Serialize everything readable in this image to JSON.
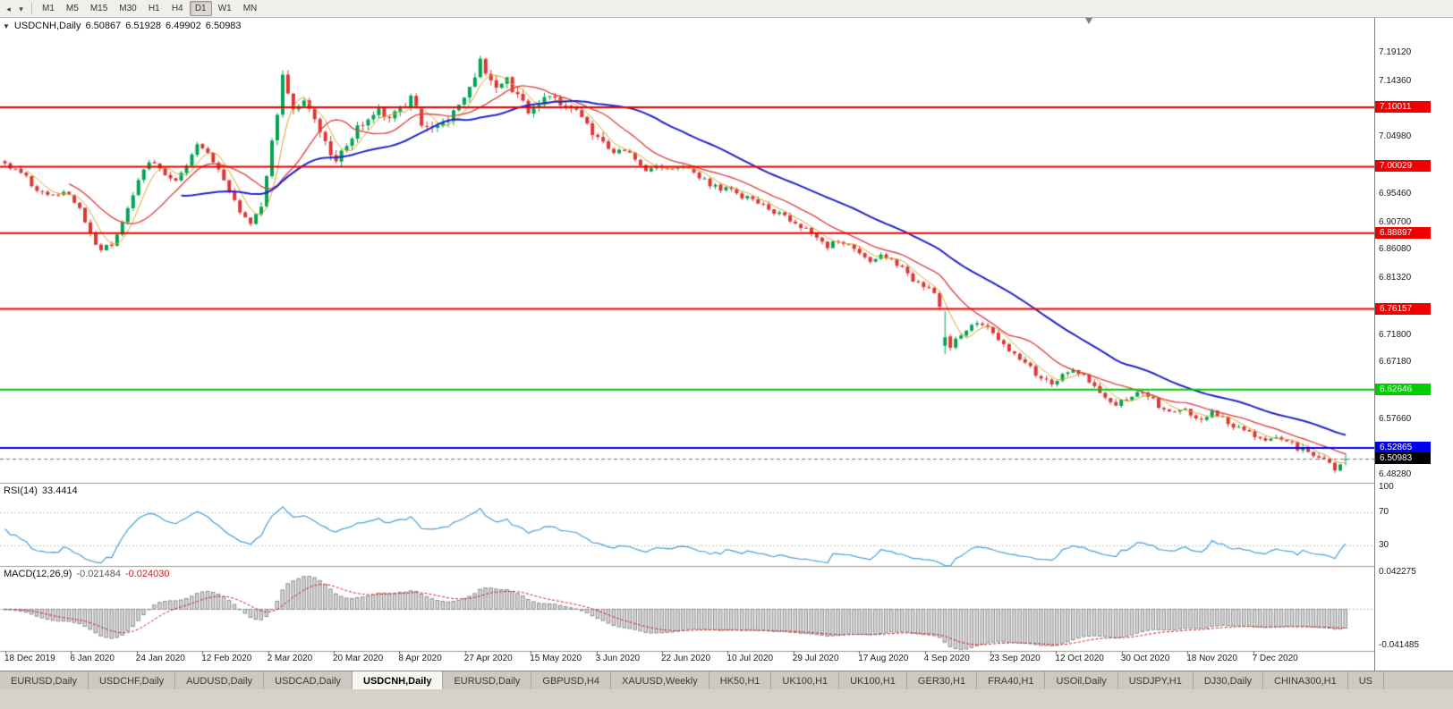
{
  "toolbar": {
    "timeframes": [
      "M1",
      "M5",
      "M15",
      "M30",
      "H1",
      "H4",
      "D1",
      "W1",
      "MN"
    ],
    "active_timeframe": "D1",
    "icons": {
      "back_arrow": "◂",
      "caret": "▾"
    }
  },
  "chart": {
    "collapse_arrow": "▼",
    "symbol_label": "USDCNH,Daily",
    "ohlc": {
      "open": "6.50867",
      "high": "6.51928",
      "low": "6.49902",
      "close": "6.50983"
    },
    "price_axis_labels": [
      "7.19120",
      "7.14360",
      "7.04980",
      "6.95460",
      "6.90700",
      "6.86080",
      "6.81320",
      "6.71800",
      "6.67180",
      "6.57660",
      "6.48280"
    ],
    "hlines": [
      {
        "value": "7.10011",
        "price": 7.10011,
        "color": "#ee0000"
      },
      {
        "value": "7.00029",
        "price": 7.00029,
        "color": "#ee0000"
      },
      {
        "value": "6.88897",
        "price": 6.88897,
        "color": "#ee0000"
      },
      {
        "value": "6.76157",
        "price": 6.76157,
        "color": "#ee0000"
      },
      {
        "value": "6.62646",
        "price": 6.62646,
        "color": "#00cc00"
      },
      {
        "value": "6.52865",
        "price": 6.52865,
        "color": "#0000ee"
      }
    ],
    "current_price": {
      "value": "6.50983",
      "price": 6.50983,
      "bg": "#000000"
    },
    "date_axis_labels": [
      "18 Dec 2019",
      "6 Jan 2020",
      "24 Jan 2020",
      "12 Feb 2020",
      "2 Mar 2020",
      "20 Mar 2020",
      "8 Apr 2020",
      "27 Apr 2020",
      "15 May 2020",
      "3 Jun 2020",
      "22 Jun 2020",
      "10 Jul 2020",
      "29 Jul 2020",
      "17 Aug 2020",
      "4 Sep 2020",
      "23 Sep 2020",
      "12 Oct 2020",
      "30 Oct 2020",
      "18 Nov 2020",
      "7 Dec 2020"
    ],
    "colors": {
      "up": "#00a651",
      "down": "#e03535",
      "ma_fast": "#d8a62a",
      "ma_mid": "#e04646",
      "ma_slow": "#2222cc",
      "rsi": "#46a0dc",
      "macd_hist_fill": "#d8d8d8",
      "macd_hist_stroke": "#8c8c8c",
      "macd_signal": "#d02020"
    }
  },
  "rsi": {
    "label": "RSI(14)",
    "value": "33.4414",
    "axis_labels": [
      "100",
      "70",
      "30"
    ],
    "levels": [
      70,
      30
    ]
  },
  "macd": {
    "label": "MACD(12,26,9)",
    "value_main": "-0.021484",
    "value_signal": "-0.024030",
    "axis_labels": [
      "0.042275",
      "-0.041485"
    ]
  },
  "tabs": {
    "items": [
      "EURUSD,Daily",
      "USDCHF,Daily",
      "AUDUSD,Daily",
      "USDCAD,Daily",
      "USDCNH,Daily",
      "EURUSD,Daily",
      "GBPUSD,H4",
      "XAUUSD,Weekly",
      "HK50,H1",
      "UK100,H1",
      "UK100,H1",
      "GER30,H1",
      "FRA40,H1",
      "USOil,Daily",
      "USDJPY,H1",
      "DJ30,Daily",
      "CHINA300,H1",
      "US"
    ],
    "active_index": 4
  },
  "chart_data": {
    "type": "candlestick",
    "symbol": "USDCNH",
    "timeframe": "Daily",
    "bars": 252,
    "y_range_displayed": [
      6.47,
      7.25
    ],
    "x_axis_dates": [
      "18 Dec 2019",
      "6 Jan 2020",
      "24 Jan 2020",
      "12 Feb 2020",
      "2 Mar 2020",
      "20 Mar 2020",
      "8 Apr 2020",
      "27 Apr 2020",
      "15 May 2020",
      "3 Jun 2020",
      "22 Jun 2020",
      "10 Jul 2020",
      "29 Jul 2020",
      "17 Aug 2020",
      "4 Sep 2020",
      "23 Sep 2020",
      "12 Oct 2020",
      "30 Oct 2020",
      "18 Nov 2020",
      "7 Dec 2020"
    ],
    "last_bar_ohlc": {
      "open": 6.50867,
      "high": 6.51928,
      "low": 6.49902,
      "close": 6.50983
    },
    "horizontal_levels": [
      7.10011,
      7.00029,
      6.88897,
      6.76157,
      6.62646,
      6.52865
    ],
    "close_anchors": [
      [
        0,
        7.003
      ],
      [
        3,
        6.99
      ],
      [
        6,
        6.963
      ],
      [
        9,
        6.949
      ],
      [
        12,
        6.958
      ],
      [
        14,
        6.928
      ],
      [
        16,
        6.888
      ],
      [
        18,
        6.858
      ],
      [
        20,
        6.872
      ],
      [
        22,
        6.905
      ],
      [
        24,
        6.955
      ],
      [
        26,
        7.0
      ],
      [
        28,
        7.008
      ],
      [
        30,
        6.988
      ],
      [
        32,
        6.98
      ],
      [
        34,
        7.005
      ],
      [
        36,
        7.035
      ],
      [
        38,
        7.022
      ],
      [
        40,
        6.995
      ],
      [
        42,
        6.958
      ],
      [
        44,
        6.928
      ],
      [
        46,
        6.908
      ],
      [
        48,
        6.94
      ],
      [
        50,
        7.04
      ],
      [
        52,
        7.148
      ],
      [
        54,
        7.092
      ],
      [
        56,
        7.118
      ],
      [
        58,
        7.082
      ],
      [
        60,
        7.042
      ],
      [
        62,
        7.012
      ],
      [
        64,
        7.038
      ],
      [
        66,
        7.062
      ],
      [
        68,
        7.082
      ],
      [
        70,
        7.096
      ],
      [
        72,
        7.086
      ],
      [
        74,
        7.1
      ],
      [
        76,
        7.112
      ],
      [
        78,
        7.076
      ],
      [
        80,
        7.062
      ],
      [
        82,
        7.072
      ],
      [
        84,
        7.092
      ],
      [
        86,
        7.112
      ],
      [
        88,
        7.15
      ],
      [
        89,
        7.18
      ],
      [
        90,
        7.158
      ],
      [
        92,
        7.132
      ],
      [
        94,
        7.146
      ],
      [
        96,
        7.118
      ],
      [
        98,
        7.096
      ],
      [
        100,
        7.106
      ],
      [
        102,
        7.116
      ],
      [
        104,
        7.108
      ],
      [
        106,
        7.098
      ],
      [
        108,
        7.084
      ],
      [
        110,
        7.06
      ],
      [
        112,
        7.04
      ],
      [
        114,
        7.02
      ],
      [
        116,
        7.03
      ],
      [
        118,
        7.01
      ],
      [
        120,
        6.995
      ],
      [
        122,
        7.005
      ],
      [
        124,
        6.995
      ],
      [
        126,
        7.001
      ],
      [
        128,
        6.995
      ],
      [
        130,
        6.985
      ],
      [
        132,
        6.971
      ],
      [
        134,
        6.961
      ],
      [
        136,
        6.965
      ],
      [
        138,
        6.951
      ],
      [
        140,
        6.944
      ],
      [
        142,
        6.934
      ],
      [
        144,
        6.924
      ],
      [
        146,
        6.916
      ],
      [
        148,
        6.906
      ],
      [
        150,
        6.894
      ],
      [
        152,
        6.878
      ],
      [
        154,
        6.868
      ],
      [
        156,
        6.878
      ],
      [
        158,
        6.868
      ],
      [
        160,
        6.852
      ],
      [
        162,
        6.844
      ],
      [
        164,
        6.854
      ],
      [
        166,
        6.842
      ],
      [
        168,
        6.83
      ],
      [
        170,
        6.812
      ],
      [
        172,
        6.8
      ],
      [
        174,
        6.786
      ],
      [
        175,
        6.762
      ],
      [
        176,
        6.714
      ],
      [
        177,
        6.7
      ],
      [
        178,
        6.712
      ],
      [
        180,
        6.726
      ],
      [
        182,
        6.74
      ],
      [
        184,
        6.73
      ],
      [
        186,
        6.712
      ],
      [
        188,
        6.692
      ],
      [
        190,
        6.678
      ],
      [
        192,
        6.662
      ],
      [
        194,
        6.645
      ],
      [
        196,
        6.638
      ],
      [
        198,
        6.652
      ],
      [
        200,
        6.662
      ],
      [
        202,
        6.648
      ],
      [
        204,
        6.628
      ],
      [
        206,
        6.612
      ],
      [
        208,
        6.6
      ],
      [
        210,
        6.612
      ],
      [
        212,
        6.624
      ],
      [
        214,
        6.616
      ],
      [
        216,
        6.6
      ],
      [
        218,
        6.59
      ],
      [
        220,
        6.596
      ],
      [
        222,
        6.585
      ],
      [
        224,
        6.572
      ],
      [
        226,
        6.59
      ],
      [
        228,
        6.578
      ],
      [
        230,
        6.565
      ],
      [
        232,
        6.558
      ],
      [
        234,
        6.548
      ],
      [
        236,
        6.538
      ],
      [
        238,
        6.55
      ],
      [
        240,
        6.54
      ],
      [
        242,
        6.528
      ],
      [
        244,
        6.525
      ],
      [
        246,
        6.512
      ],
      [
        248,
        6.5
      ],
      [
        249,
        6.494
      ],
      [
        250,
        6.503
      ],
      [
        251,
        6.51
      ]
    ],
    "special_bars": [
      {
        "bar": 176,
        "o": 6.7,
        "h": 6.758,
        "l": 6.686,
        "c": 6.714
      }
    ],
    "volatile_range_bars": [
      48,
      112
    ],
    "moving_averages": [
      {
        "period": 5,
        "color_key": "ma_fast"
      },
      {
        "period": 13,
        "color_key": "ma_mid"
      },
      {
        "period": 34,
        "color_key": "ma_slow"
      }
    ],
    "indicators": [
      {
        "name": "RSI",
        "period": 14,
        "last_value": 33.4414,
        "levels": [
          70,
          30
        ],
        "range": [
          0,
          100
        ]
      },
      {
        "name": "MACD",
        "fast": 12,
        "slow": 26,
        "signal": 9,
        "last_main": -0.021484,
        "last_signal": -0.02403,
        "scale_max": 0.042275,
        "scale_min": -0.041485
      }
    ]
  }
}
